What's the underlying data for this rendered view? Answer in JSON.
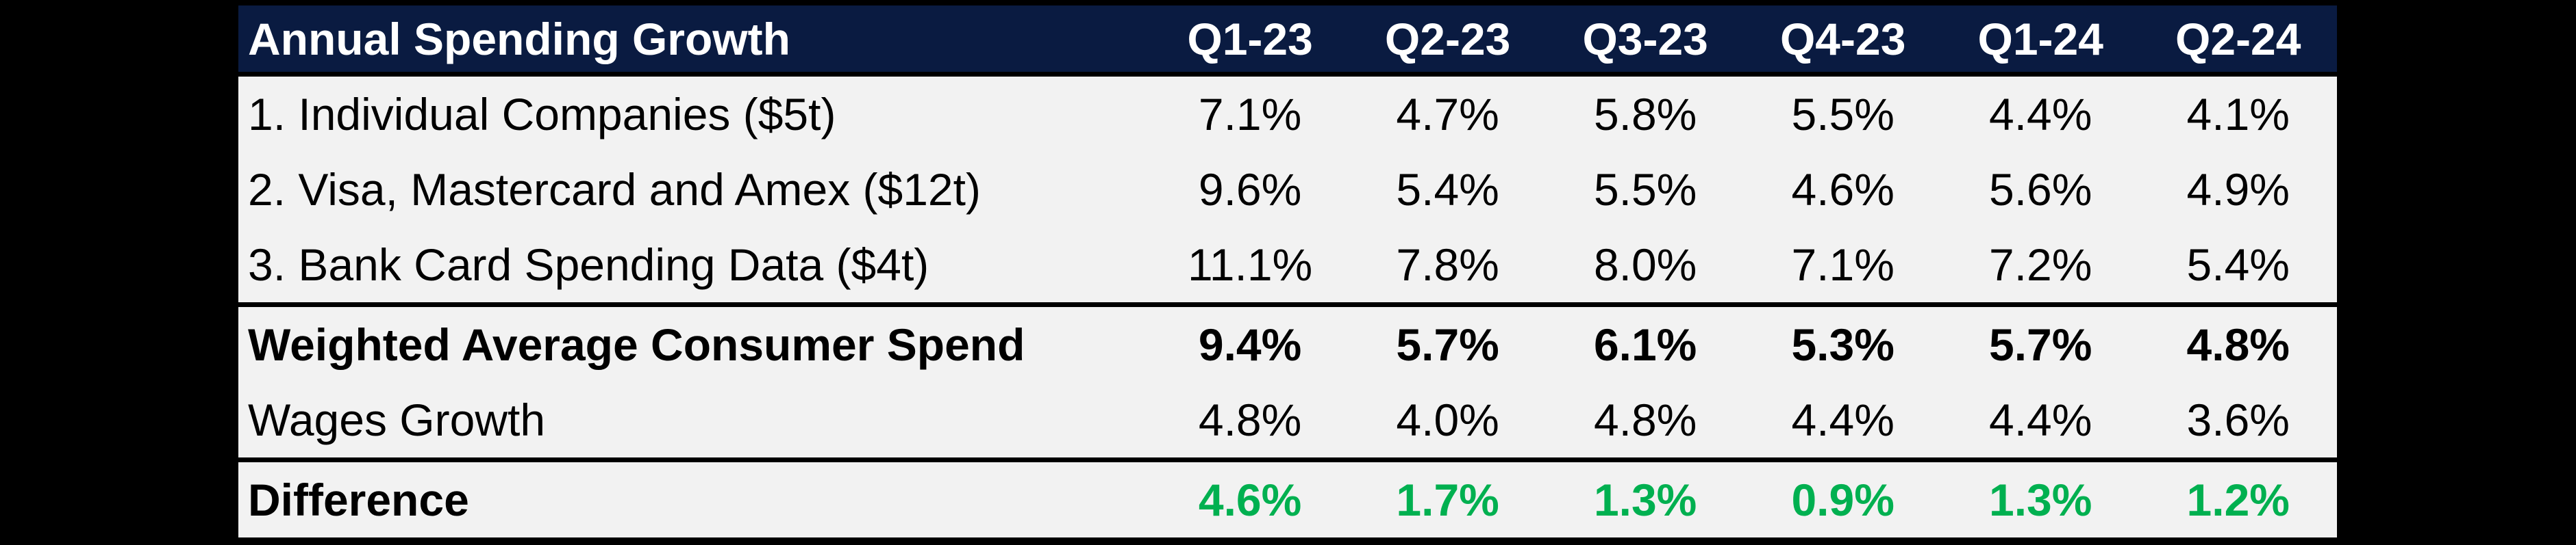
{
  "table": {
    "title": "Annual Spending Growth",
    "columns": [
      "Q1-23",
      "Q2-23",
      "Q3-23",
      "Q4-23",
      "Q1-24",
      "Q2-24"
    ],
    "rows": [
      {
        "label": "1. Individual Companies ($5t)",
        "values": [
          "7.1%",
          "4.7%",
          "5.8%",
          "5.5%",
          "4.4%",
          "4.1%"
        ],
        "style": "normal",
        "border_top": false
      },
      {
        "label": "2. Visa, Mastercard and Amex ($12t)",
        "values": [
          "9.6%",
          "5.4%",
          "5.5%",
          "4.6%",
          "5.6%",
          "4.9%"
        ],
        "style": "normal",
        "border_top": false
      },
      {
        "label": "3. Bank Card Spending Data ($4t)",
        "values": [
          "11.1%",
          "7.8%",
          "8.0%",
          "7.1%",
          "7.2%",
          "5.4%"
        ],
        "style": "normal",
        "border_top": false
      },
      {
        "label": "Weighted Average Consumer Spend",
        "values": [
          "9.4%",
          "5.7%",
          "6.1%",
          "5.3%",
          "5.7%",
          "4.8%"
        ],
        "style": "bold",
        "border_top": true
      },
      {
        "label": "Wages Growth",
        "values": [
          "4.8%",
          "4.0%",
          "4.8%",
          "4.4%",
          "4.4%",
          "3.6%"
        ],
        "style": "normal",
        "border_top": false
      },
      {
        "label": "Difference",
        "values": [
          "4.6%",
          "1.7%",
          "1.3%",
          "0.9%",
          "1.3%",
          "1.2%"
        ],
        "style": "difference",
        "border_top": true
      }
    ],
    "colors": {
      "header_bg": "#0a1b41",
      "header_text": "#ffffff",
      "row_bg": "#f2f2f2",
      "body_text": "#000000",
      "difference_text": "#00b050",
      "page_bg": "#000000",
      "separator": "#000000"
    }
  },
  "chart_data": {
    "type": "table",
    "title": "Annual Spending Growth",
    "columns": [
      "Q1-23",
      "Q2-23",
      "Q3-23",
      "Q4-23",
      "Q1-24",
      "Q2-24"
    ],
    "units": "percent",
    "series": [
      {
        "name": "1. Individual Companies ($5t)",
        "values": [
          7.1,
          4.7,
          5.8,
          5.5,
          4.4,
          4.1
        ]
      },
      {
        "name": "2. Visa, Mastercard and Amex ($12t)",
        "values": [
          9.6,
          5.4,
          5.5,
          4.6,
          5.6,
          4.9
        ]
      },
      {
        "name": "3. Bank Card Spending Data ($4t)",
        "values": [
          11.1,
          7.8,
          8.0,
          7.1,
          7.2,
          5.4
        ]
      },
      {
        "name": "Weighted Average Consumer Spend",
        "values": [
          9.4,
          5.7,
          6.1,
          5.3,
          5.7,
          4.8
        ]
      },
      {
        "name": "Wages Growth",
        "values": [
          4.8,
          4.0,
          4.8,
          4.4,
          4.4,
          3.6
        ]
      },
      {
        "name": "Difference",
        "values": [
          4.6,
          1.7,
          1.3,
          0.9,
          1.3,
          1.2
        ]
      }
    ]
  }
}
